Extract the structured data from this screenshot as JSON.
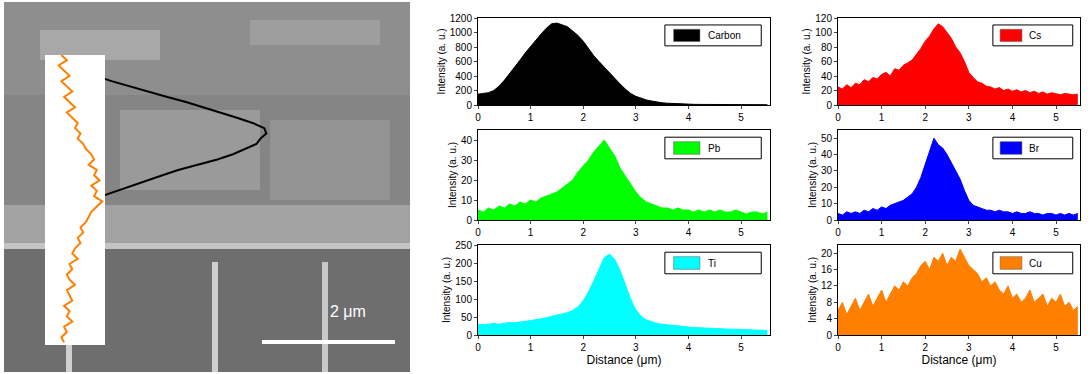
{
  "chart_data": {
    "type": "area",
    "x_title": "Distance (μm)",
    "y_title": "Intensity (a. u.)",
    "annotations": [
      "2 μm"
    ],
    "xlim": [
      0,
      5.55
    ],
    "xticks": [
      0,
      1,
      2,
      3,
      4,
      5
    ],
    "x": [
      0,
      0.1,
      0.2,
      0.3,
      0.4,
      0.5,
      0.6,
      0.7,
      0.8,
      0.9,
      1.0,
      1.1,
      1.2,
      1.3,
      1.4,
      1.5,
      1.6,
      1.7,
      1.8,
      1.9,
      2.0,
      2.1,
      2.2,
      2.3,
      2.4,
      2.5,
      2.6,
      2.7,
      2.8,
      2.9,
      3.0,
      3.1,
      3.2,
      3.3,
      3.4,
      3.5,
      3.6,
      3.7,
      3.8,
      3.9,
      4.0,
      4.1,
      4.2,
      4.3,
      4.4,
      4.5,
      4.6,
      4.7,
      4.8,
      4.9,
      5.0,
      5.1,
      5.2,
      5.3,
      5.4,
      5.5
    ],
    "series": [
      {
        "name": "Carbon",
        "color": "#000000",
        "ylim": [
          0,
          1200
        ],
        "yticks": [
          0,
          200,
          400,
          600,
          800,
          1000,
          1200
        ],
        "values": [
          150,
          160,
          170,
          200,
          260,
          340,
          430,
          530,
          620,
          720,
          810,
          900,
          980,
          1060,
          1120,
          1130,
          1100,
          1080,
          1020,
          960,
          880,
          780,
          680,
          600,
          520,
          440,
          360,
          290,
          220,
          160,
          120,
          90,
          70,
          55,
          40,
          30,
          25,
          20,
          15,
          12,
          10,
          9,
          8,
          8,
          7,
          7,
          6,
          6,
          6,
          5,
          5,
          5,
          5,
          4,
          4,
          4
        ]
      },
      {
        "name": "Cs",
        "color": "#ff0000",
        "ylim": [
          0,
          120
        ],
        "yticks": [
          0,
          20,
          40,
          60,
          80,
          100,
          120
        ],
        "values": [
          25,
          22,
          28,
          24,
          30,
          28,
          35,
          32,
          38,
          36,
          42,
          45,
          40,
          50,
          48,
          55,
          58,
          62,
          70,
          78,
          88,
          95,
          105,
          112,
          108,
          100,
          92,
          80,
          72,
          60,
          45,
          38,
          32,
          30,
          26,
          25,
          22,
          24,
          20,
          22,
          19,
          21,
          18,
          20,
          17,
          19,
          16,
          18,
          15,
          17,
          16,
          14,
          16,
          15,
          14,
          15
        ]
      },
      {
        "name": "Pb",
        "color": "#00ff00",
        "ylim": [
          0,
          45
        ],
        "yticks": [
          0,
          10,
          20,
          30,
          40
        ],
        "values": [
          5,
          4,
          6,
          5,
          7,
          6,
          8,
          7,
          9,
          8,
          10,
          9,
          11,
          12,
          13,
          14,
          16,
          18,
          20,
          24,
          27,
          30,
          34,
          37,
          40,
          36,
          32,
          26,
          22,
          18,
          14,
          11,
          9,
          8,
          7,
          6,
          6,
          5,
          6,
          5,
          5,
          4,
          5,
          4,
          5,
          4,
          5,
          4,
          4,
          5,
          4,
          3,
          4,
          4,
          3,
          4
        ]
      },
      {
        "name": "Br",
        "color": "#0000ff",
        "ylim": [
          0,
          55
        ],
        "yticks": [
          0,
          10,
          20,
          30,
          40,
          50
        ],
        "values": [
          4,
          3,
          5,
          4,
          5,
          4,
          6,
          5,
          7,
          6,
          8,
          7,
          9,
          10,
          11,
          12,
          14,
          16,
          20,
          26,
          34,
          42,
          50,
          46,
          44,
          40,
          35,
          30,
          25,
          18,
          12,
          9,
          8,
          7,
          6,
          6,
          5,
          6,
          5,
          5,
          4,
          5,
          4,
          4,
          5,
          4,
          4,
          3,
          4,
          4,
          3,
          4,
          3,
          4,
          3,
          4
        ]
      },
      {
        "name": "Ti",
        "color": "#00ffff",
        "ylim": [
          0,
          250
        ],
        "yticks": [
          0,
          50,
          100,
          150,
          200,
          250
        ],
        "values": [
          30,
          28,
          30,
          32,
          30,
          33,
          35,
          34,
          37,
          38,
          40,
          42,
          45,
          48,
          52,
          55,
          58,
          62,
          68,
          78,
          95,
          120,
          150,
          185,
          215,
          225,
          210,
          180,
          140,
          100,
          70,
          52,
          42,
          36,
          32,
          30,
          28,
          26,
          25,
          24,
          22,
          21,
          20,
          20,
          19,
          18,
          18,
          17,
          16,
          16,
          15,
          15,
          14,
          14,
          13,
          13
        ]
      },
      {
        "name": "Cu",
        "color": "#ff8000",
        "ylim": [
          0,
          22
        ],
        "yticks": [
          0,
          4,
          8,
          12,
          16,
          20
        ],
        "values": [
          6,
          8,
          5,
          7,
          9,
          6,
          8,
          10,
          7,
          9,
          11,
          8,
          10,
          12,
          11,
          13,
          12,
          14,
          15,
          17,
          18,
          16,
          19,
          18,
          20,
          17,
          19,
          18,
          21,
          19,
          17,
          16,
          15,
          13,
          14,
          12,
          13,
          11,
          10,
          12,
          9,
          10,
          8,
          9,
          11,
          8,
          9,
          10,
          7,
          9,
          8,
          10,
          7,
          8,
          6,
          7
        ]
      }
    ]
  }
}
